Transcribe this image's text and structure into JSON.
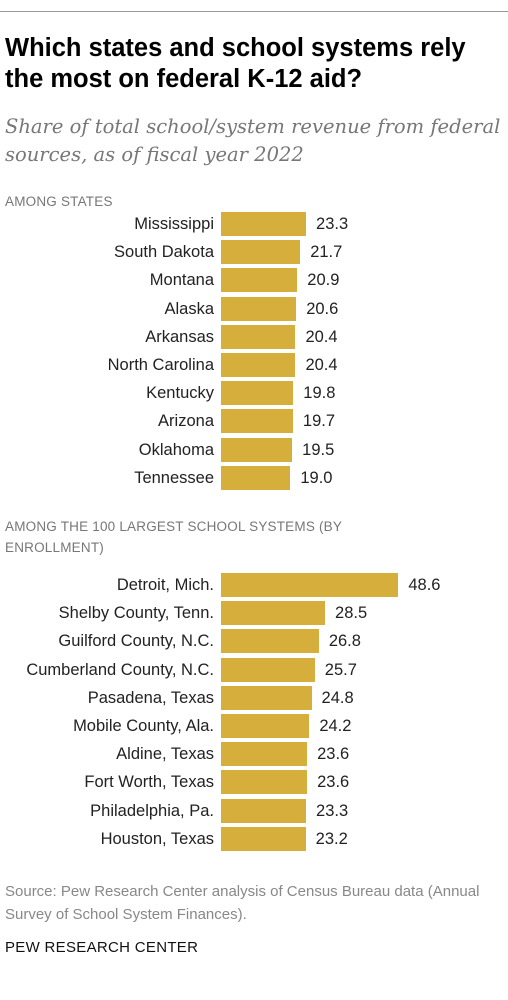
{
  "title": "Which states and school systems rely the most on federal K-12 aid?",
  "subtitle": "Share of total school/system revenue from federal sources, as of fiscal year 2022",
  "source": "Source: Pew Research Center analysis of Census Bureau data (Annual Survey of School System Finances).",
  "footer": "PEW RESEARCH CENTER",
  "colors": {
    "bar": "#d6ae3b"
  },
  "chart_data": [
    {
      "type": "bar",
      "orientation": "horizontal",
      "title": "AMONG STATES",
      "categories": [
        "Mississippi",
        "South Dakota",
        "Montana",
        "Alaska",
        "Arkansas",
        "North Carolina",
        "Kentucky",
        "Arizona",
        "Oklahoma",
        "Tennessee"
      ],
      "values": [
        23.3,
        21.7,
        20.9,
        20.6,
        20.4,
        20.4,
        19.8,
        19.7,
        19.5,
        19.0
      ],
      "value_labels": [
        "23.3",
        "21.7",
        "20.9",
        "20.6",
        "20.4",
        "20.4",
        "19.8",
        "19.7",
        "19.5",
        "19.0"
      ]
    },
    {
      "type": "bar",
      "orientation": "horizontal",
      "title": "AMONG THE 100 LARGEST SCHOOL SYSTEMS (BY ENROLLMENT)",
      "categories": [
        "Detroit, Mich.",
        "Shelby County, Tenn.",
        "Guilford County, N.C.",
        "Cumberland County, N.C.",
        "Pasadena, Texas",
        "Mobile County, Ala.",
        "Aldine, Texas",
        "Fort Worth, Texas",
        "Philadelphia, Pa.",
        "Houston, Texas"
      ],
      "values": [
        48.6,
        28.5,
        26.8,
        25.7,
        24.8,
        24.2,
        23.6,
        23.6,
        23.3,
        23.2
      ],
      "value_labels": [
        "48.6",
        "28.5",
        "26.8",
        "25.7",
        "24.8",
        "24.2",
        "23.6",
        "23.6",
        "23.3",
        "23.2"
      ]
    }
  ]
}
